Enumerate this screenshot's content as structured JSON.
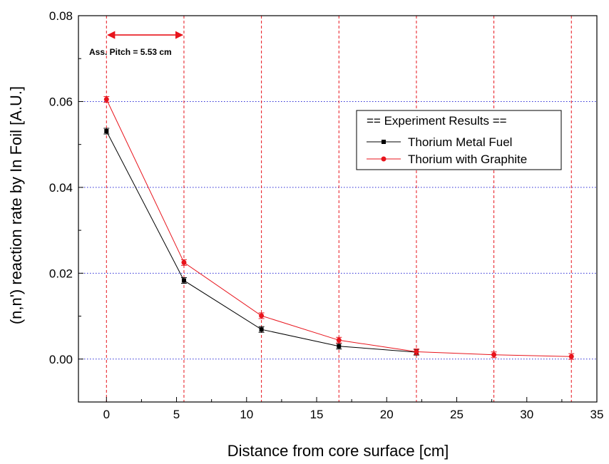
{
  "chart_data": {
    "type": "line",
    "xlabel": "Distance from core surface [cm]",
    "ylabel": "(n,n') reaction rate by In Foil [A.U.]",
    "xlim": [
      -2,
      35
    ],
    "ylim": [
      -0.01,
      0.08
    ],
    "xticks": [
      "0",
      "5",
      "10",
      "15",
      "20",
      "25",
      "30",
      "35"
    ],
    "yticks": [
      "0.00",
      "0.02",
      "0.04",
      "0.06",
      "0.08"
    ],
    "reference_lines_x": [
      0,
      5.53,
      11.06,
      16.59,
      22.12,
      27.65,
      33.18
    ],
    "reference_lines_y": [
      0,
      0.02,
      0.04,
      0.06
    ],
    "legend": {
      "title": "== Experiment Results ==",
      "placement": "upper-right"
    },
    "series": [
      {
        "name": "Thorium Metal Fuel",
        "color": "#000000",
        "marker": "square",
        "x": [
          0,
          5.53,
          11.06,
          16.59,
          22.12
        ],
        "y": [
          0.0531,
          0.0183,
          0.0069,
          0.003,
          0.0016
        ]
      },
      {
        "name": "Thorium with Graphite",
        "color": "#e8141c",
        "marker": "circle",
        "x": [
          0,
          5.53,
          11.06,
          16.59,
          22.12,
          27.65,
          33.18
        ],
        "y": [
          0.0605,
          0.0225,
          0.0101,
          0.0044,
          0.0017,
          0.001,
          0.0006
        ]
      }
    ],
    "annotation": {
      "text": "Ass. Pitch = 5.53 cm",
      "from_x": 0,
      "to_x": 5.53,
      "y": 0.0755
    }
  }
}
